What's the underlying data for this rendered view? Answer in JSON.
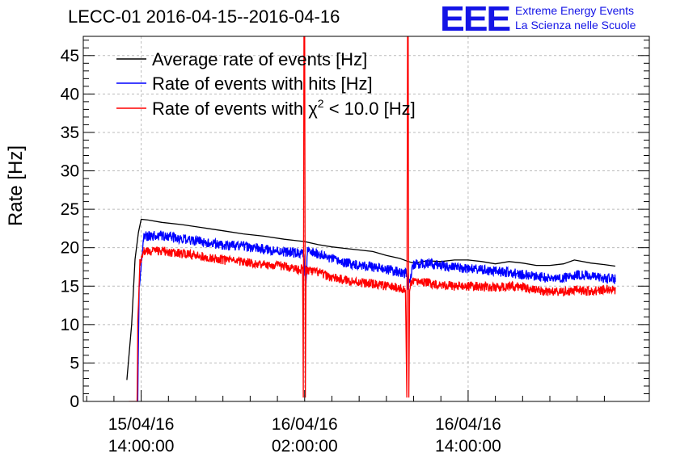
{
  "header": {
    "title": "LECC-01 2016-04-15--2016-04-16",
    "logo_letters": "EEE",
    "logo_line1": "Extreme Energy Events",
    "logo_line2": "La Scienza nelle Scuole"
  },
  "colors": {
    "average": "#000000",
    "hits": "#0000ff",
    "chi2": "#ff0000",
    "logo": "#1414e6",
    "grid": "#bbbbbb"
  },
  "chart_data": {
    "type": "line",
    "ylabel": "Rate [Hz]",
    "ylim": [
      0,
      47.5
    ],
    "y_ticks": [
      0,
      5,
      10,
      15,
      20,
      25,
      30,
      35,
      40,
      45
    ],
    "x_unit": "hours since 2016-04-15 00:00",
    "xlim": [
      9.75,
      51.3
    ],
    "x_ticks": [
      {
        "x": 14,
        "line1": "15/04/16",
        "line2": "14:00:00"
      },
      {
        "x": 26,
        "line1": "16/04/16",
        "line2": "02:00:00"
      },
      {
        "x": 38,
        "line1": "16/04/16",
        "line2": "14:00:00"
      }
    ],
    "grid": true,
    "legend": {
      "placement": "top-left",
      "entries": [
        {
          "series": 0,
          "label": "Average rate of events [Hz]"
        },
        {
          "series": 1,
          "label": "Rate of events with hits [Hz]"
        },
        {
          "series": 2,
          "label_prefix": "Rate of events with ",
          "label_symbol": "χ",
          "label_sup": "2",
          "label_suffix": " < 10.0 [Hz]"
        }
      ]
    },
    "series": [
      {
        "name": "Average rate of events [Hz]",
        "color": "#000000",
        "noise": 0,
        "x": [
          12.95,
          13.3,
          13.55,
          13.8,
          14.0,
          14.5,
          15.5,
          17.0,
          18.5,
          20.0,
          21.5,
          23.0,
          24.5,
          25.5,
          26.0,
          27.0,
          28.0,
          29.0,
          30.0,
          31.0,
          32.0,
          33.0,
          33.6,
          34.0,
          35.0,
          36.0,
          37.0,
          38.0,
          39.0,
          40.0,
          41.0,
          42.0,
          43.0,
          44.0,
          45.0,
          45.8,
          47.0,
          48.0,
          48.8
        ],
        "y": [
          2.8,
          10.0,
          18.5,
          22.0,
          23.7,
          23.6,
          23.3,
          23.0,
          22.6,
          22.2,
          21.8,
          21.5,
          21.1,
          20.9,
          20.8,
          20.4,
          20.1,
          19.9,
          19.7,
          19.5,
          19.0,
          18.6,
          18.2,
          18.0,
          18.3,
          18.2,
          18.4,
          18.4,
          18.2,
          17.9,
          18.2,
          18.0,
          17.7,
          17.7,
          17.9,
          18.4,
          18.0,
          17.8,
          17.6
        ]
      },
      {
        "name": "Rate of events with hits [Hz]",
        "color": "#0000ff",
        "noise": 0.65,
        "x": [
          13.75,
          13.85,
          14.2,
          15.5,
          17.0,
          18.5,
          20.0,
          21.5,
          23.0,
          24.5,
          25.9,
          26.1,
          26.2,
          27.0,
          28.0,
          29.0,
          30.0,
          31.0,
          32.0,
          33.5,
          33.6,
          34.0,
          35.0,
          36.0,
          37.0,
          38.0,
          39.0,
          40.0,
          41.0,
          42.0,
          43.0,
          44.0,
          45.0,
          46.0,
          47.0,
          48.0,
          48.8
        ],
        "y": [
          0,
          15.0,
          21.5,
          21.6,
          21.1,
          20.8,
          20.3,
          20.2,
          19.8,
          19.5,
          19.2,
          15.0,
          19.5,
          19.2,
          18.5,
          18.0,
          17.8,
          17.5,
          17.2,
          16.6,
          15.0,
          17.8,
          18.0,
          17.7,
          17.4,
          17.3,
          17.1,
          16.9,
          16.8,
          16.5,
          16.3,
          16.0,
          16.1,
          16.5,
          16.3,
          16.0,
          15.9
        ]
      },
      {
        "name": "Rate of events with χ2 < 10.0 [Hz]",
        "color": "#ff0000",
        "noise": 0.6,
        "x": [
          13.1,
          13.7,
          13.75,
          13.9,
          14.2,
          15.5,
          17.0,
          18.5,
          20.0,
          21.5,
          23.0,
          24.5,
          25.5,
          25.85,
          25.9,
          25.95,
          26.0,
          26.05,
          26.1,
          26.2,
          27.0,
          28.0,
          29.0,
          30.0,
          31.0,
          32.0,
          32.9,
          33.4,
          33.5,
          33.55,
          33.6,
          33.65,
          33.7,
          33.8,
          34.5,
          35.5,
          37.0,
          38.5,
          40.0,
          41.0,
          42.0,
          43.0,
          44.0,
          45.0,
          46.0,
          47.0,
          48.0,
          48.8
        ],
        "y": [
          0,
          0,
          10.0,
          18.0,
          19.5,
          19.6,
          19.2,
          18.9,
          18.4,
          18.2,
          17.8,
          17.6,
          17.2,
          17.2,
          0.5,
          48,
          48,
          0.5,
          17.2,
          17.0,
          16.8,
          16.1,
          15.8,
          15.5,
          15.3,
          15.0,
          14.8,
          14.3,
          0.5,
          48,
          48,
          0.5,
          14.0,
          15.4,
          15.6,
          15.3,
          15.0,
          15.0,
          14.8,
          15.0,
          14.9,
          14.4,
          14.3,
          14.2,
          14.5,
          14.3,
          14.6,
          14.5
        ]
      }
    ]
  }
}
